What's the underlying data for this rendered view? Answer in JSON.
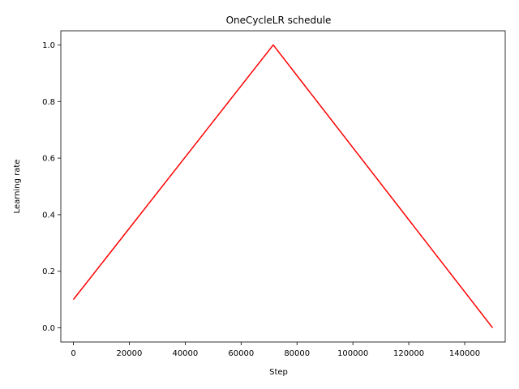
{
  "chart_data": {
    "type": "line",
    "title": "OneCycleLR schedule",
    "xlabel": "Step",
    "ylabel": "Learning rate",
    "xlim": [
      -4500,
      154500
    ],
    "ylim": [
      -0.05,
      1.05
    ],
    "xticks": [
      0,
      20000,
      40000,
      60000,
      80000,
      100000,
      120000,
      140000
    ],
    "xtick_labels": [
      "0",
      "20000",
      "40000",
      "60000",
      "80000",
      "100000",
      "120000",
      "140000"
    ],
    "yticks": [
      0.0,
      0.2,
      0.4,
      0.6,
      0.8,
      1.0
    ],
    "ytick_labels": [
      "0.0",
      "0.2",
      "0.4",
      "0.6",
      "0.8",
      "1.0"
    ],
    "grid": false,
    "series": [
      {
        "color": "#ff0000",
        "x": [
          0,
          71500,
          150000
        ],
        "y": [
          0.1,
          1.0,
          0.0
        ]
      }
    ]
  }
}
